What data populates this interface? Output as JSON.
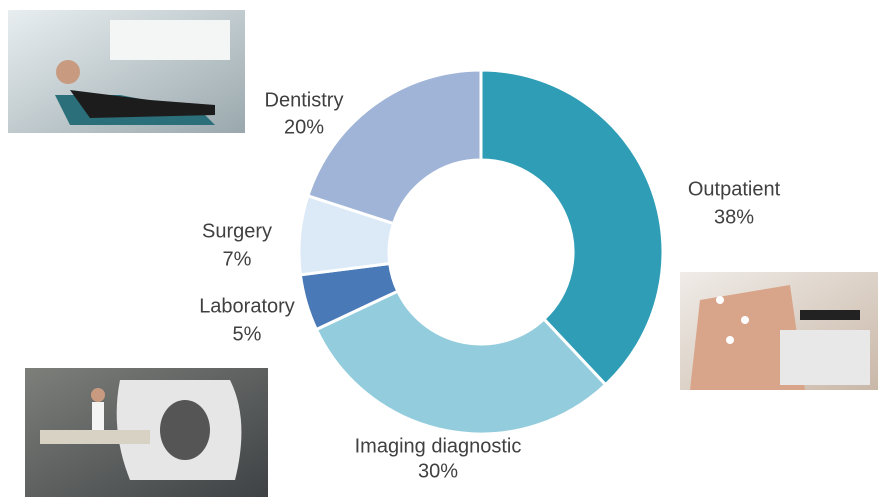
{
  "chart_data": {
    "type": "donut",
    "categories": [
      "Outpatient",
      "Imaging diagnostic",
      "Laboratory",
      "Surgery",
      "Dentistry"
    ],
    "values": [
      38,
      30,
      5,
      7,
      20
    ],
    "value_labels": [
      "38%",
      "30%",
      "5%",
      "7%",
      "20%"
    ],
    "colors": [
      "#2f9db6",
      "#93cddd",
      "#4a79b7",
      "#dce9f6",
      "#a0b4d7"
    ]
  }
}
